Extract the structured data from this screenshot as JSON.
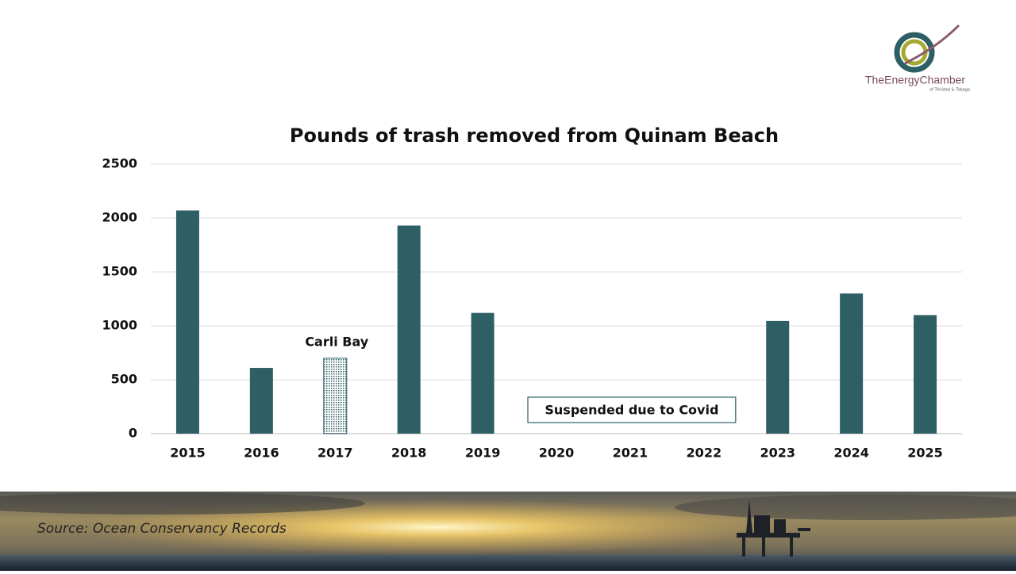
{
  "logo": {
    "name": "TheEnergyChamber",
    "subtitle": "of Trinidad & Tobago"
  },
  "source": "Source: Ocean Conservancy Records",
  "chart_data": {
    "type": "bar",
    "title": "Pounds of trash removed from Quinam Beach",
    "categories": [
      "2015",
      "2016",
      "2017",
      "2018",
      "2019",
      "2020",
      "2021",
      "2022",
      "2023",
      "2024",
      "2025"
    ],
    "values": [
      2070,
      610,
      700,
      1930,
      1120,
      null,
      null,
      null,
      1045,
      1300,
      1100
    ],
    "color": "#2e5f65",
    "pattern_category": "2017",
    "annotations": [
      {
        "text": "Carli Bay",
        "category": "2017"
      }
    ],
    "boxed_notes": [
      {
        "text": "Suspended due to Covid",
        "from": "2020",
        "to": "2022"
      }
    ],
    "ylim": [
      0,
      2500
    ],
    "yticks": [
      0,
      500,
      1000,
      1500,
      2000,
      2500
    ],
    "grid": true
  }
}
